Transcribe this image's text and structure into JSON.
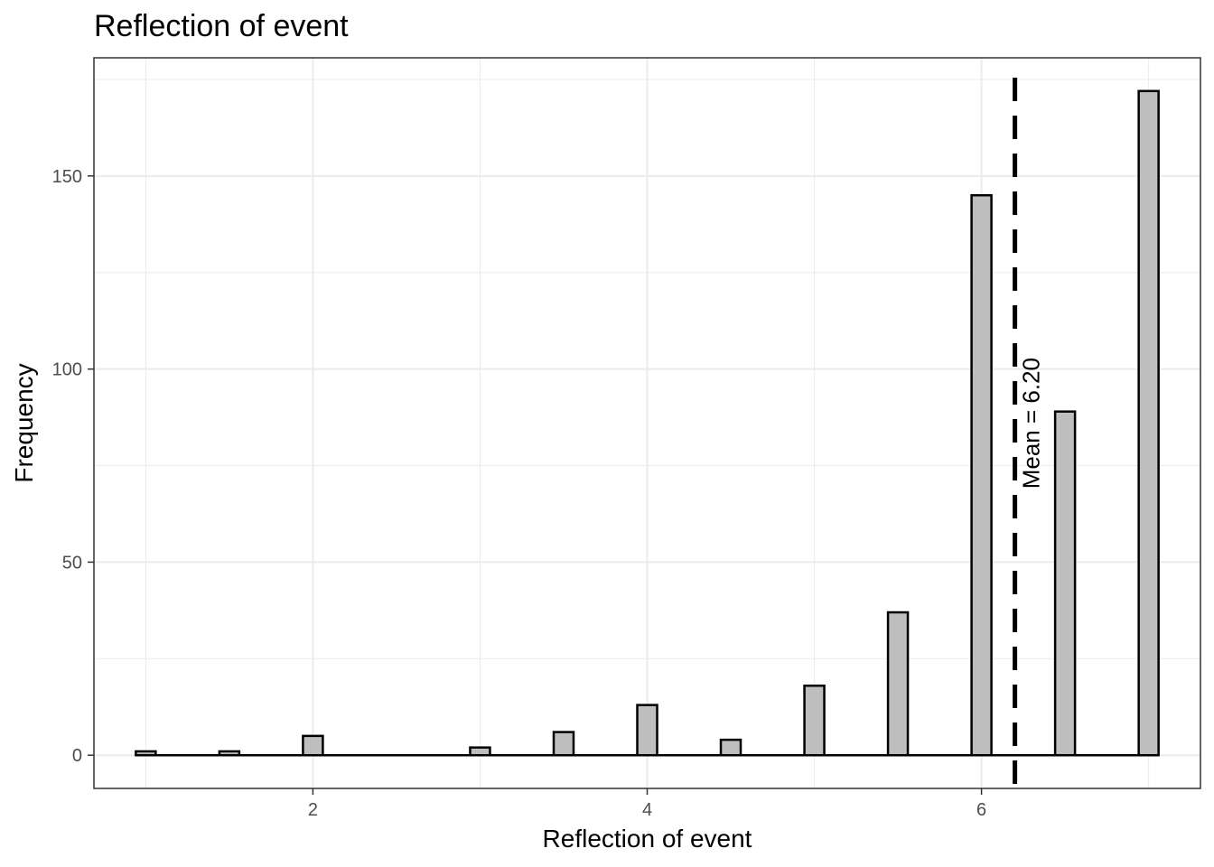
{
  "chart_data": {
    "type": "bar",
    "title": "Reflection of event",
    "xlabel": "Reflection of event",
    "ylabel": "Frequency",
    "x": [
      1,
      1.5,
      2,
      2.5,
      3,
      3.5,
      4,
      4.5,
      5,
      5.5,
      6,
      6.5,
      7
    ],
    "values": [
      1,
      1,
      5,
      0,
      2,
      6,
      13,
      4,
      18,
      37,
      145,
      89,
      172
    ],
    "xlim": [
      0.69,
      7.31
    ],
    "ylim": [
      -8.6,
      180.6
    ],
    "x_ticks": [
      2,
      4,
      6
    ],
    "y_ticks": [
      0,
      50,
      100,
      150
    ],
    "grid": true,
    "mean": 6.2,
    "mean_label": "Mean = 6.20",
    "colors": {
      "bar_fill": "#bebebe",
      "bar_stroke": "#000000",
      "grid": "#ebebeb",
      "mean_line": "#000000"
    }
  }
}
